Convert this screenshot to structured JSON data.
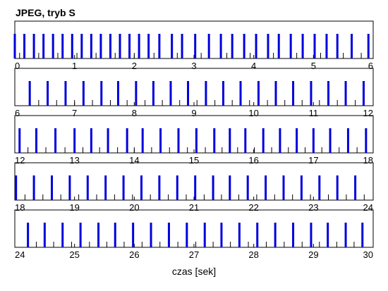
{
  "chart_data": {
    "type": "bar",
    "title": "JPEG, tryb S",
    "xlabel": "czas [sek]",
    "ylabel": "",
    "grid": false,
    "legend": "none",
    "colors": {
      "frame_bar": "#0000dd",
      "minor_tick": "#000000",
      "axes": "#000000"
    },
    "panels": [
      {
        "xlim": [
          0,
          6
        ],
        "tick_labels": [
          "0",
          "1",
          "2",
          "3",
          "4",
          "5",
          "6"
        ],
        "frames": [
          0.0,
          0.16,
          0.32,
          0.48,
          0.64,
          0.8,
          0.96,
          1.12,
          1.28,
          1.44,
          1.6,
          1.76,
          1.92,
          2.08,
          2.24,
          2.42,
          2.63,
          2.8,
          3.02,
          3.25,
          3.45,
          3.64,
          3.84,
          4.04,
          4.24,
          4.42,
          4.62,
          4.82,
          5.02,
          5.22,
          5.4,
          5.64,
          5.92
        ],
        "minor": [
          0.08,
          0.4,
          0.72,
          1.04,
          1.36,
          1.68,
          2.0,
          2.33,
          2.72,
          3.12,
          3.55,
          3.94,
          4.33,
          4.72,
          5.12,
          5.5,
          5.8
        ]
      },
      {
        "xlim": [
          6,
          12
        ],
        "tick_labels": [
          "6",
          "7",
          "8",
          "9",
          "10",
          "11",
          "12"
        ],
        "frames": [
          6.25,
          6.55,
          6.85,
          7.15,
          7.45,
          7.73,
          8.03,
          8.32,
          8.61,
          8.9,
          9.2,
          9.49,
          9.78,
          10.08,
          10.37,
          10.66,
          10.96,
          11.25,
          11.54,
          11.84
        ],
        "minor": [
          6.4,
          6.7,
          7.0,
          7.3,
          7.6,
          7.88,
          8.18,
          8.47,
          8.76,
          9.05,
          9.35,
          9.64,
          9.93,
          10.23,
          10.52,
          10.81,
          11.1,
          11.4,
          11.7
        ]
      },
      {
        "xlim": [
          12,
          18
        ],
        "tick_labels": [
          "12",
          "13",
          "14",
          "15",
          "16",
          "17",
          "18"
        ],
        "frames": [
          12.08,
          12.36,
          12.68,
          13.0,
          13.28,
          13.56,
          13.88,
          14.14,
          14.44,
          14.74,
          15.04,
          15.34,
          15.6,
          15.86,
          16.16,
          16.44,
          16.72,
          17.0,
          17.28,
          17.58,
          17.88
        ],
        "minor": [
          12.22,
          12.52,
          12.84,
          13.14,
          13.42,
          13.72,
          14.0,
          14.29,
          14.59,
          14.89,
          15.19,
          15.47,
          15.73,
          16.01,
          16.3,
          16.58,
          16.86,
          17.14,
          17.43,
          17.73
        ]
      },
      {
        "xlim": [
          18,
          24
        ],
        "tick_labels": [
          "18",
          "19",
          "20",
          "21",
          "22",
          "23",
          "24"
        ],
        "frames": [
          18.02,
          18.32,
          18.62,
          18.92,
          19.22,
          19.52,
          19.82,
          20.12,
          20.42,
          20.72,
          21.02,
          21.32,
          21.6,
          21.9,
          22.2,
          22.5,
          22.8,
          23.1,
          23.4,
          23.7
        ],
        "minor": [
          18.17,
          18.47,
          18.77,
          19.07,
          19.37,
          19.67,
          19.97,
          20.27,
          20.57,
          20.87,
          21.17,
          21.46,
          21.75,
          22.05,
          22.35,
          22.65,
          22.95,
          23.25,
          23.55,
          23.85
        ]
      },
      {
        "xlim": [
          24,
          30
        ],
        "tick_labels": [
          "24",
          "25",
          "26",
          "27",
          "28",
          "29",
          "30"
        ],
        "frames": [
          24.22,
          24.5,
          24.8,
          25.1,
          25.4,
          25.68,
          25.98,
          26.28,
          26.58,
          26.88,
          27.18,
          27.46,
          27.76,
          28.06,
          28.36,
          28.66,
          28.96,
          29.24,
          29.54,
          29.82
        ],
        "minor": [
          24.36,
          24.65,
          24.95,
          25.25,
          25.54,
          25.83,
          26.13,
          26.43,
          26.73,
          27.03,
          27.32,
          27.61,
          27.91,
          28.21,
          28.51,
          28.81,
          29.1,
          29.39,
          29.68
        ]
      }
    ]
  }
}
